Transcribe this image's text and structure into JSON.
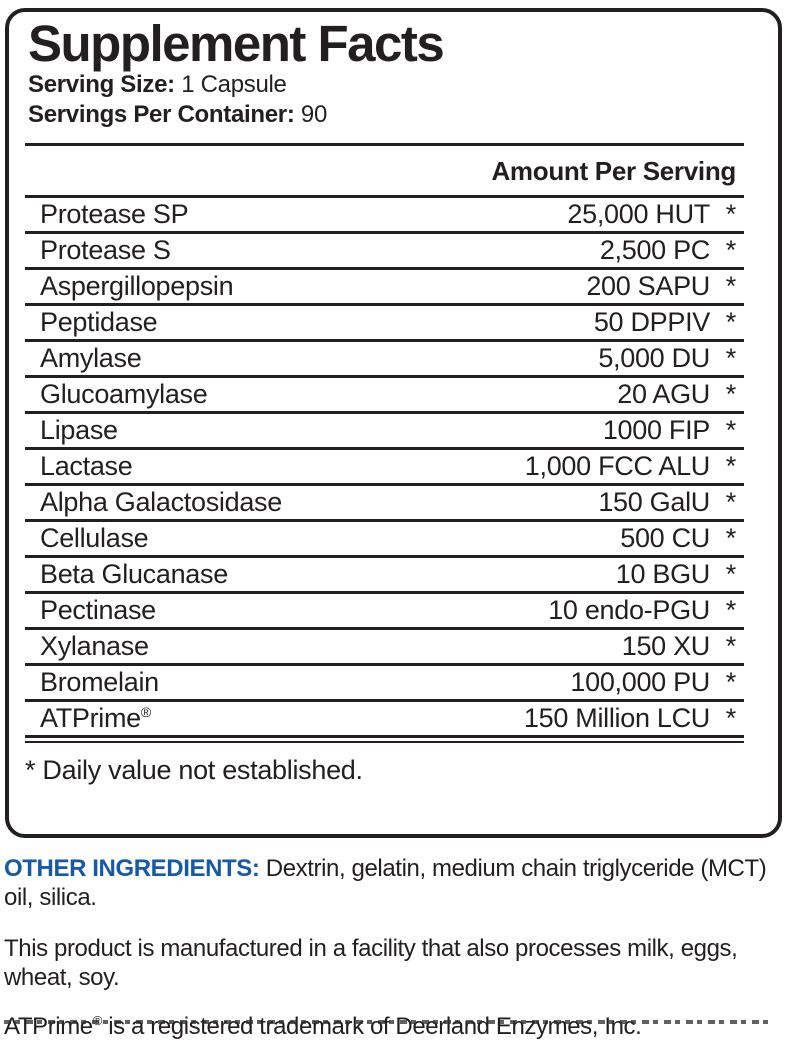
{
  "panel": {
    "title": "Supplement Facts",
    "serving_size": {
      "label": "Serving Size:",
      "value": "1 Capsule"
    },
    "servings_per_container": {
      "label": "Servings Per Container:",
      "value": "90"
    },
    "amount_header": "Amount Per Serving",
    "rows": [
      {
        "name": "Protease SP",
        "amount": "25,000 HUT",
        "dv": "*"
      },
      {
        "name": "Protease S",
        "amount": "2,500 PC",
        "dv": "*"
      },
      {
        "name": "Aspergillopepsin",
        "amount": "200 SAPU",
        "dv": "*"
      },
      {
        "name": "Peptidase",
        "amount": "50 DPPIV",
        "dv": "*"
      },
      {
        "name": "Amylase",
        "amount": "5,000 DU",
        "dv": "*"
      },
      {
        "name": "Glucoamylase",
        "amount": "20 AGU",
        "dv": "*"
      },
      {
        "name": "Lipase",
        "amount": "1000 FIP",
        "dv": "*"
      },
      {
        "name": "Lactase",
        "amount": "1,000 FCC ALU",
        "dv": "*"
      },
      {
        "name": "Alpha Galactosidase",
        "amount": "150 GalU",
        "dv": "*"
      },
      {
        "name": "Cellulase",
        "amount": "500 CU",
        "dv": "*"
      },
      {
        "name": "Beta Glucanase",
        "amount": "10 BGU",
        "dv": "*"
      },
      {
        "name": "Pectinase",
        "amount": "10 endo-PGU",
        "dv": "*"
      },
      {
        "name": "Xylanase",
        "amount": "150 XU",
        "dv": "*"
      },
      {
        "name": "Bromelain",
        "amount": "100,000 PU",
        "dv": "*"
      },
      {
        "name": "ATPrime",
        "name_sup": "®",
        "amount": "150 Million LCU",
        "dv": "*"
      }
    ],
    "footnote": "* Daily value not established."
  },
  "footer": {
    "other_ingredients": {
      "label": "OTHER INGREDIENTS:",
      "text": "Dextrin, gelatin, medium chain triglyceride (MCT) oil, silica."
    },
    "allergen_statement": "This product is manufactured in a facility that also processes milk, eggs, wheat, soy.",
    "trademark": {
      "prefix": "ATPrime",
      "reg": "®",
      "rest": "is a registered trademark of Deerland Enzymes, Inc."
    }
  },
  "colors": {
    "ink": "#231f20",
    "accent_blue": "#1559a8",
    "background": "#ffffff"
  }
}
